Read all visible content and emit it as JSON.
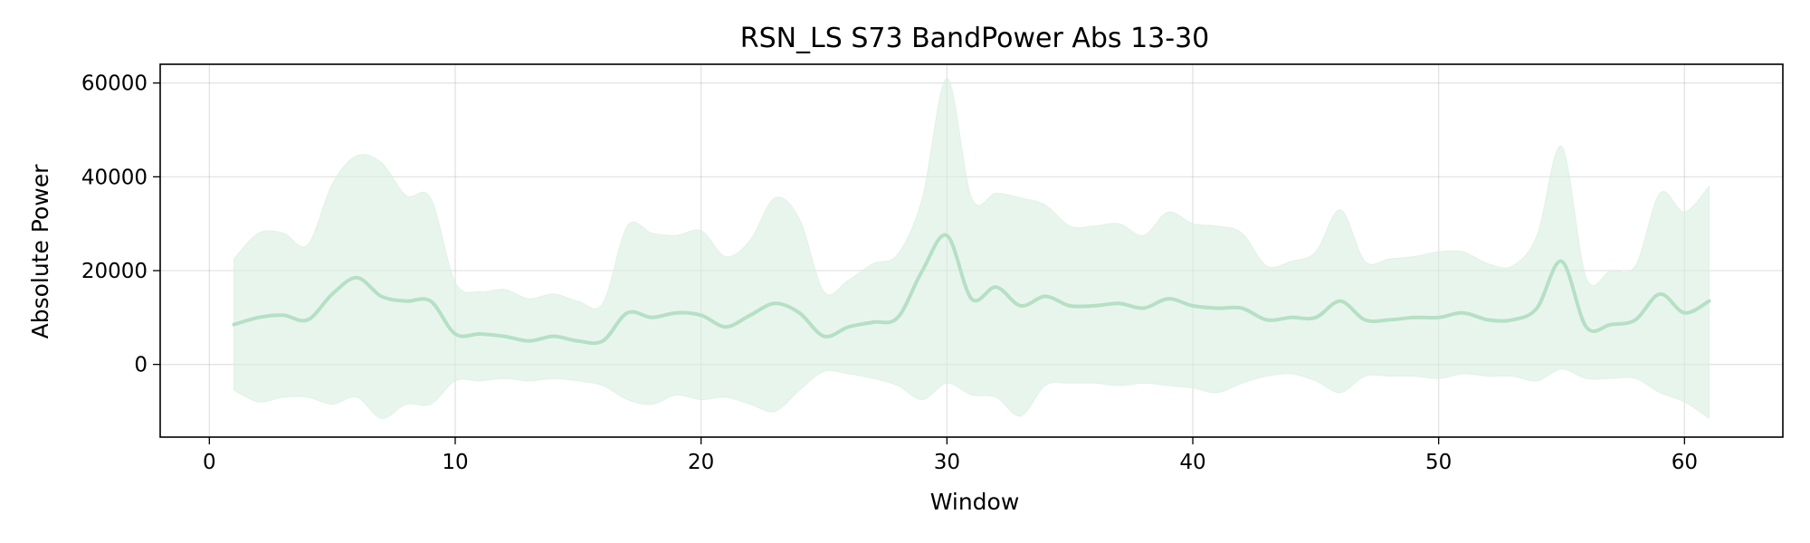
{
  "chart_data": {
    "type": "line",
    "title": "RSN_LS S73 BandPower Abs 13-30",
    "xlabel": "Window",
    "ylabel": "Absolute Power",
    "xlim": [
      -2,
      64
    ],
    "ylim": [
      -15500,
      64000
    ],
    "xticks": [
      0,
      10,
      20,
      30,
      40,
      50,
      60
    ],
    "yticks": [
      0,
      20000,
      40000,
      60000
    ],
    "grid": true,
    "colors": {
      "line": "#b5e0c4",
      "band": "#d9efe1"
    },
    "series": [
      {
        "x": [
          1,
          2,
          3,
          4,
          5,
          6,
          7,
          8,
          9,
          10,
          11,
          12,
          13,
          14,
          15,
          16,
          17,
          18,
          19,
          20,
          21,
          22,
          23,
          24,
          25,
          26,
          27,
          28,
          29,
          30,
          31,
          32,
          33,
          34,
          35,
          36,
          37,
          38,
          39,
          40,
          41,
          42,
          43,
          44,
          45,
          46,
          47,
          48,
          49,
          50,
          51,
          52,
          53,
          54,
          55,
          56,
          57,
          58,
          59,
          60,
          61
        ],
        "mean": [
          8500,
          10000,
          10500,
          9500,
          15000,
          18500,
          14500,
          13500,
          13500,
          6500,
          6500,
          6000,
          5000,
          6000,
          5000,
          5000,
          11000,
          10000,
          11000,
          10500,
          8000,
          10500,
          13000,
          11000,
          6000,
          8000,
          9000,
          10000,
          20000,
          27500,
          14000,
          16500,
          12500,
          14500,
          12500,
          12500,
          13000,
          12000,
          14000,
          12500,
          12000,
          12000,
          9500,
          10000,
          10000,
          13500,
          9500,
          9500,
          10000,
          10000,
          11000,
          9500,
          9500,
          12000,
          22000,
          8000,
          8500,
          9500,
          15000,
          11000,
          13500
        ],
        "upper": [
          22500,
          28000,
          28000,
          25500,
          38500,
          44500,
          43000,
          36000,
          35500,
          17500,
          15500,
          16000,
          14000,
          15000,
          13500,
          13000,
          29500,
          28000,
          27500,
          28500,
          23000,
          26500,
          35500,
          31000,
          15500,
          18000,
          21500,
          23500,
          35500,
          61000,
          35500,
          36500,
          35500,
          34000,
          29500,
          29500,
          30000,
          27500,
          32500,
          30000,
          29500,
          28000,
          21000,
          22000,
          24000,
          33000,
          22000,
          22500,
          23000,
          24000,
          24000,
          21500,
          21000,
          27500,
          46500,
          18500,
          20000,
          21000,
          36500,
          32500,
          38000
        ],
        "lower": [
          -5500,
          -8000,
          -7000,
          -7000,
          -8500,
          -7000,
          -11500,
          -8500,
          -8500,
          -3500,
          -3500,
          -3000,
          -3500,
          -3000,
          -3500,
          -4500,
          -7500,
          -8500,
          -6500,
          -7500,
          -7000,
          -8500,
          -10000,
          -5500,
          -1500,
          -2000,
          -3000,
          -4500,
          -7500,
          -4000,
          -6500,
          -7000,
          -11000,
          -4500,
          -4000,
          -4000,
          -4500,
          -4000,
          -4500,
          -5000,
          -6000,
          -4000,
          -2500,
          -2000,
          -3500,
          -6000,
          -2500,
          -2500,
          -2500,
          -3000,
          -2000,
          -2500,
          -2500,
          -3500,
          -1000,
          -3000,
          -3000,
          -3000,
          -6000,
          -8000,
          -11500
        ]
      }
    ]
  }
}
